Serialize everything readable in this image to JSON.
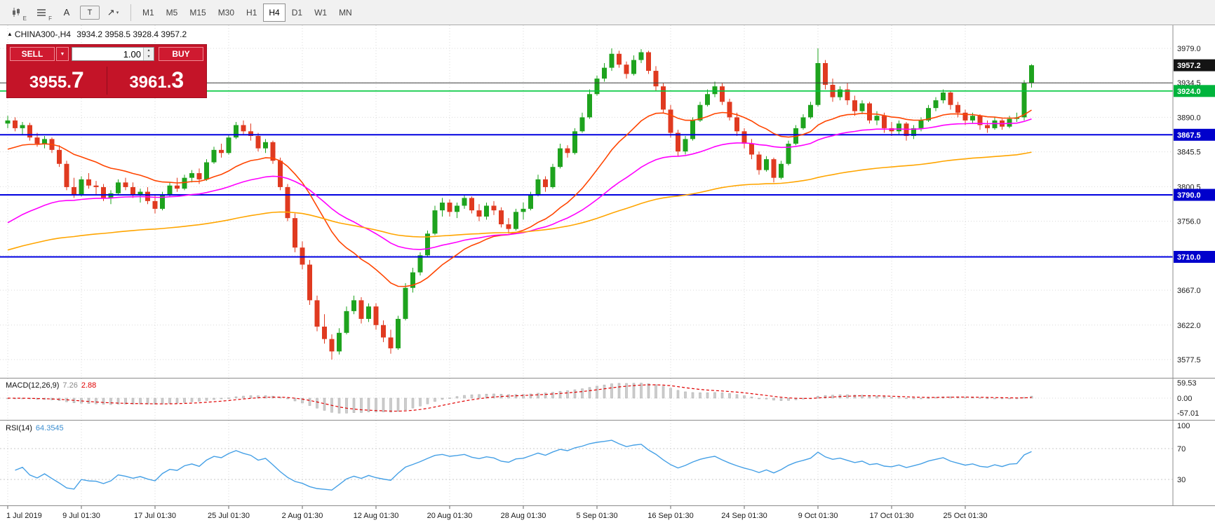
{
  "ui": {
    "toolbar": {
      "tools": [
        {
          "name": "candlestick-chart-icon",
          "svg": "candles",
          "label": "E"
        },
        {
          "name": "grid-levels-icon",
          "svg": "lines",
          "label": "F"
        },
        {
          "name": "letter-a-tool-icon",
          "label": "A"
        },
        {
          "name": "text-tool-icon",
          "label": "T",
          "boxed": true
        },
        {
          "name": "arrows-objects-icon",
          "label": "↗",
          "caret": "▾"
        }
      ],
      "timeframes": [
        {
          "label": "M1",
          "active": false
        },
        {
          "label": "M5",
          "active": false
        },
        {
          "label": "M15",
          "active": false
        },
        {
          "label": "M30",
          "active": false
        },
        {
          "label": "H1",
          "active": false
        },
        {
          "label": "H4",
          "active": true
        },
        {
          "label": "D1",
          "active": false
        },
        {
          "label": "W1",
          "active": false
        },
        {
          "label": "MN",
          "active": false
        }
      ]
    },
    "header": {
      "marker": "▲",
      "symbol": "CHINA300-,H4",
      "ohlc": "3934.2 3958.5 3928.4 3957.2"
    },
    "trade_panel": {
      "sell_label": "SELL",
      "buy_label": "BUY",
      "volume": "1.00",
      "caret": "▼",
      "spin_up": "▴",
      "spin_down": "▾",
      "bid": {
        "base": "3955.",
        "big": "7"
      },
      "ask": {
        "base": "3961.",
        "big": "3"
      }
    },
    "macd_label": {
      "name": "MACD(12,26,9)",
      "main": "7.26",
      "signal": "2.88"
    },
    "rsi_label": {
      "name": "RSI(14)",
      "value": "64.3545"
    }
  },
  "chart_data": {
    "type": "candlestick",
    "symbol": "CHINA300-",
    "timeframe": "H4",
    "current_ohlc": {
      "open": 3934.2,
      "high": 3958.5,
      "low": 3928.4,
      "close": 3957.2
    },
    "up_color": "#1ea31e",
    "down_color": "#e03a20",
    "y_axis": {
      "range": [
        3554,
        4009
      ],
      "ticks": [
        {
          "v": 3979.0,
          "t": "3979.0"
        },
        {
          "v": 3934.5,
          "t": "3934.5"
        },
        {
          "v": 3890.0,
          "t": "3890.0"
        },
        {
          "v": 3845.5,
          "t": "3845.5"
        },
        {
          "v": 3800.5,
          "t": "3800.5"
        },
        {
          "v": 3756.0,
          "t": "3756.0"
        },
        {
          "v": 3711.5,
          "t": ""
        },
        {
          "v": 3667.0,
          "t": "3667.0"
        },
        {
          "v": 3622.0,
          "t": "3622.0"
        },
        {
          "v": 3577.5,
          "t": "3577.5"
        }
      ]
    },
    "x_labels": [
      {
        "t": "1 Jul 2019",
        "i": 0
      },
      {
        "t": "9 Jul 01:30",
        "i": 10
      },
      {
        "t": "17 Jul 01:30",
        "i": 20
      },
      {
        "t": "25 Jul 01:30",
        "i": 30
      },
      {
        "t": "2 Aug 01:30",
        "i": 40
      },
      {
        "t": "12 Aug 01:30",
        "i": 50
      },
      {
        "t": "20 Aug 01:30",
        "i": 60
      },
      {
        "t": "28 Aug 01:30",
        "i": 70
      },
      {
        "t": "5 Sep 01:30",
        "i": 80
      },
      {
        "t": "16 Sep 01:30",
        "i": 90
      },
      {
        "t": "24 Sep 01:30",
        "i": 100
      },
      {
        "t": "9 Oct 01:30",
        "i": 110
      },
      {
        "t": "17 Oct 01:30",
        "i": 120
      },
      {
        "t": "25 Oct 01:30",
        "i": 130
      }
    ],
    "candles": [
      [
        3882,
        3892,
        3876,
        3886
      ],
      [
        3886,
        3890,
        3872,
        3876
      ],
      [
        3876,
        3884,
        3868,
        3880
      ],
      [
        3880,
        3883,
        3860,
        3864
      ],
      [
        3864,
        3870,
        3852,
        3856
      ],
      [
        3856,
        3866,
        3850,
        3862
      ],
      [
        3862,
        3864,
        3844,
        3848
      ],
      [
        3848,
        3854,
        3826,
        3830
      ],
      [
        3830,
        3834,
        3796,
        3800
      ],
      [
        3800,
        3812,
        3786,
        3790
      ],
      [
        3790,
        3814,
        3788,
        3810
      ],
      [
        3810,
        3818,
        3798,
        3802
      ],
      [
        3802,
        3808,
        3790,
        3800
      ],
      [
        3800,
        3804,
        3782,
        3786
      ],
      [
        3786,
        3796,
        3778,
        3792
      ],
      [
        3792,
        3810,
        3790,
        3806
      ],
      [
        3806,
        3812,
        3796,
        3800
      ],
      [
        3800,
        3806,
        3786,
        3790
      ],
      [
        3790,
        3798,
        3780,
        3794
      ],
      [
        3794,
        3800,
        3778,
        3782
      ],
      [
        3782,
        3790,
        3766,
        3772
      ],
      [
        3772,
        3794,
        3770,
        3790
      ],
      [
        3790,
        3806,
        3788,
        3802
      ],
      [
        3802,
        3812,
        3794,
        3798
      ],
      [
        3798,
        3816,
        3796,
        3812
      ],
      [
        3812,
        3822,
        3806,
        3818
      ],
      [
        3818,
        3824,
        3804,
        3810
      ],
      [
        3810,
        3836,
        3808,
        3832
      ],
      [
        3832,
        3852,
        3830,
        3848
      ],
      [
        3848,
        3856,
        3838,
        3844
      ],
      [
        3844,
        3868,
        3842,
        3864
      ],
      [
        3864,
        3884,
        3862,
        3880
      ],
      [
        3880,
        3886,
        3868,
        3872
      ],
      [
        3872,
        3882,
        3860,
        3866
      ],
      [
        3866,
        3870,
        3846,
        3850
      ],
      [
        3850,
        3862,
        3844,
        3858
      ],
      [
        3858,
        3860,
        3830,
        3834
      ],
      [
        3834,
        3838,
        3796,
        3800
      ],
      [
        3800,
        3804,
        3756,
        3760
      ],
      [
        3760,
        3766,
        3716,
        3722
      ],
      [
        3722,
        3730,
        3694,
        3700
      ],
      [
        3700,
        3706,
        3648,
        3654
      ],
      [
        3654,
        3660,
        3614,
        3620
      ],
      [
        3620,
        3636,
        3598,
        3604
      ],
      [
        3604,
        3610,
        3577.5,
        3588
      ],
      [
        3588,
        3618,
        3584,
        3612
      ],
      [
        3612,
        3646,
        3610,
        3640
      ],
      [
        3640,
        3660,
        3636,
        3654
      ],
      [
        3654,
        3658,
        3624,
        3630
      ],
      [
        3630,
        3650,
        3626,
        3646
      ],
      [
        3646,
        3650,
        3616,
        3622
      ],
      [
        3622,
        3628,
        3600,
        3606
      ],
      [
        3606,
        3616,
        3585,
        3592
      ],
      [
        3592,
        3634,
        3590,
        3630
      ],
      [
        3630,
        3676,
        3628,
        3670
      ],
      [
        3670,
        3696,
        3664,
        3690
      ],
      [
        3690,
        3716,
        3686,
        3712
      ],
      [
        3712,
        3744,
        3710,
        3740
      ],
      [
        3740,
        3776,
        3738,
        3770
      ],
      [
        3770,
        3786,
        3762,
        3780
      ],
      [
        3780,
        3784,
        3762,
        3768
      ],
      [
        3768,
        3780,
        3760,
        3776
      ],
      [
        3776,
        3790,
        3772,
        3786
      ],
      [
        3786,
        3788,
        3766,
        3770
      ],
      [
        3770,
        3778,
        3756,
        3762
      ],
      [
        3762,
        3780,
        3758,
        3776
      ],
      [
        3776,
        3782,
        3764,
        3770
      ],
      [
        3770,
        3774,
        3748,
        3752
      ],
      [
        3752,
        3760,
        3740,
        3746
      ],
      [
        3746,
        3772,
        3744,
        3768
      ],
      [
        3768,
        3780,
        3758,
        3772
      ],
      [
        3772,
        3794,
        3770,
        3790
      ],
      [
        3790,
        3816,
        3788,
        3810
      ],
      [
        3810,
        3814,
        3794,
        3800
      ],
      [
        3800,
        3830,
        3798,
        3826
      ],
      [
        3826,
        3856,
        3824,
        3850
      ],
      [
        3850,
        3854,
        3838,
        3844
      ],
      [
        3844,
        3876,
        3842,
        3872
      ],
      [
        3872,
        3896,
        3870,
        3890
      ],
      [
        3890,
        3926,
        3888,
        3920
      ],
      [
        3920,
        3944,
        3918,
        3940
      ],
      [
        3940,
        3960,
        3936,
        3954
      ],
      [
        3954,
        3979,
        3950,
        3972
      ],
      [
        3972,
        3976,
        3954,
        3958
      ],
      [
        3958,
        3962,
        3940,
        3946
      ],
      [
        3946,
        3970,
        3944,
        3964
      ],
      [
        3964,
        3978,
        3960,
        3974
      ],
      [
        3974,
        3976,
        3946,
        3950
      ],
      [
        3950,
        3956,
        3924,
        3930
      ],
      [
        3930,
        3934,
        3896,
        3900
      ],
      [
        3900,
        3906,
        3864,
        3870
      ],
      [
        3870,
        3874,
        3840,
        3846
      ],
      [
        3846,
        3866,
        3842,
        3862
      ],
      [
        3862,
        3890,
        3860,
        3886
      ],
      [
        3886,
        3910,
        3884,
        3906
      ],
      [
        3906,
        3926,
        3904,
        3920
      ],
      [
        3920,
        3936,
        3916,
        3930
      ],
      [
        3930,
        3934,
        3906,
        3910
      ],
      [
        3910,
        3914,
        3886,
        3890
      ],
      [
        3890,
        3896,
        3866,
        3872
      ],
      [
        3872,
        3876,
        3850,
        3856
      ],
      [
        3856,
        3862,
        3836,
        3842
      ],
      [
        3842,
        3846,
        3816,
        3822
      ],
      [
        3822,
        3840,
        3820,
        3836
      ],
      [
        3836,
        3838,
        3806,
        3812
      ],
      [
        3812,
        3834,
        3810,
        3830
      ],
      [
        3830,
        3860,
        3828,
        3856
      ],
      [
        3856,
        3880,
        3854,
        3876
      ],
      [
        3876,
        3894,
        3874,
        3890
      ],
      [
        3890,
        3910,
        3888,
        3906
      ],
      [
        3906,
        3979,
        3904,
        3960
      ],
      [
        3960,
        3964,
        3926,
        3932
      ],
      [
        3932,
        3940,
        3910,
        3916
      ],
      [
        3916,
        3930,
        3912,
        3926
      ],
      [
        3926,
        3934,
        3906,
        3912
      ],
      [
        3912,
        3918,
        3892,
        3898
      ],
      [
        3898,
        3912,
        3894,
        3908
      ],
      [
        3908,
        3910,
        3882,
        3886
      ],
      [
        3886,
        3898,
        3880,
        3892
      ],
      [
        3892,
        3896,
        3870,
        3876
      ],
      [
        3876,
        3884,
        3866,
        3872
      ],
      [
        3872,
        3886,
        3868,
        3882
      ],
      [
        3882,
        3884,
        3860,
        3866
      ],
      [
        3866,
        3880,
        3862,
        3876
      ],
      [
        3876,
        3890,
        3872,
        3886
      ],
      [
        3886,
        3906,
        3884,
        3902
      ],
      [
        3902,
        3916,
        3898,
        3912
      ],
      [
        3912,
        3926,
        3908,
        3922
      ],
      [
        3922,
        3924,
        3900,
        3906
      ],
      [
        3906,
        3910,
        3890,
        3896
      ],
      [
        3896,
        3900,
        3880,
        3886
      ],
      [
        3886,
        3896,
        3882,
        3892
      ],
      [
        3892,
        3894,
        3874,
        3880
      ],
      [
        3880,
        3886,
        3870,
        3876
      ],
      [
        3876,
        3890,
        3874,
        3886
      ],
      [
        3886,
        3888,
        3874,
        3878
      ],
      [
        3878,
        3892,
        3876,
        3888
      ],
      [
        3888,
        3896,
        3884,
        3890
      ],
      [
        3890,
        3938,
        3886,
        3934
      ],
      [
        3934.2,
        3958.5,
        3928.4,
        3957.2
      ]
    ],
    "moving_averages": [
      {
        "name": "ma-fast-line",
        "color": "#ff4500",
        "period": 20,
        "seed": 3845
      },
      {
        "name": "ma-mid-line",
        "color": "#ff00ff",
        "period": 45,
        "seed": 3748
      },
      {
        "name": "ma-slow-line",
        "color": "#ffa500",
        "period": 120,
        "seed": 3716
      }
    ],
    "price_lines": [
      {
        "label": "3957.2",
        "value": 3957.2,
        "type": "current-price",
        "line": "none",
        "color": "#141414",
        "badge": "#141414"
      },
      {
        "label": "3924.0",
        "value": 3924.0,
        "type": "level",
        "line": "solid",
        "width": 1.6,
        "color": "#00c83c",
        "badge": "#00b43c"
      },
      {
        "label": "3867.5",
        "value": 3867.5,
        "type": "level",
        "line": "solid",
        "width": 2,
        "color": "#0000e0",
        "badge": "#0000cc"
      },
      {
        "label": "3790.0",
        "value": 3790.0,
        "type": "level",
        "line": "solid",
        "width": 2,
        "color": "#0000e0",
        "badge": "#0000cc"
      },
      {
        "label": "3710.0",
        "value": 3710.0,
        "type": "level",
        "line": "solid",
        "width": 2,
        "color": "#0000e0",
        "badge": "#0000cc"
      },
      {
        "label": "",
        "value": 3934.5,
        "type": "open-line",
        "line": "solid",
        "width": 1,
        "color": "#3c3c3c",
        "badge": null
      }
    ],
    "macd": {
      "params": [
        12,
        26,
        9
      ],
      "last_values": [
        7.26,
        2.88
      ],
      "axis": [
        {
          "v": 59.53,
          "t": "59.53"
        },
        {
          "v": 0,
          "t": "0.00"
        },
        {
          "v": -57.01,
          "t": "-57.01"
        }
      ],
      "hist_color": "#cdcdcd",
      "signal_color": "#e00000"
    },
    "rsi": {
      "period": 14,
      "last_value": 64.3545,
      "color": "#45a0e6",
      "levels": [
        70,
        30
      ],
      "axis": [
        {
          "v": 100,
          "t": "100"
        },
        {
          "v": 70,
          "t": "70"
        },
        {
          "v": 30,
          "t": "30"
        }
      ]
    }
  }
}
